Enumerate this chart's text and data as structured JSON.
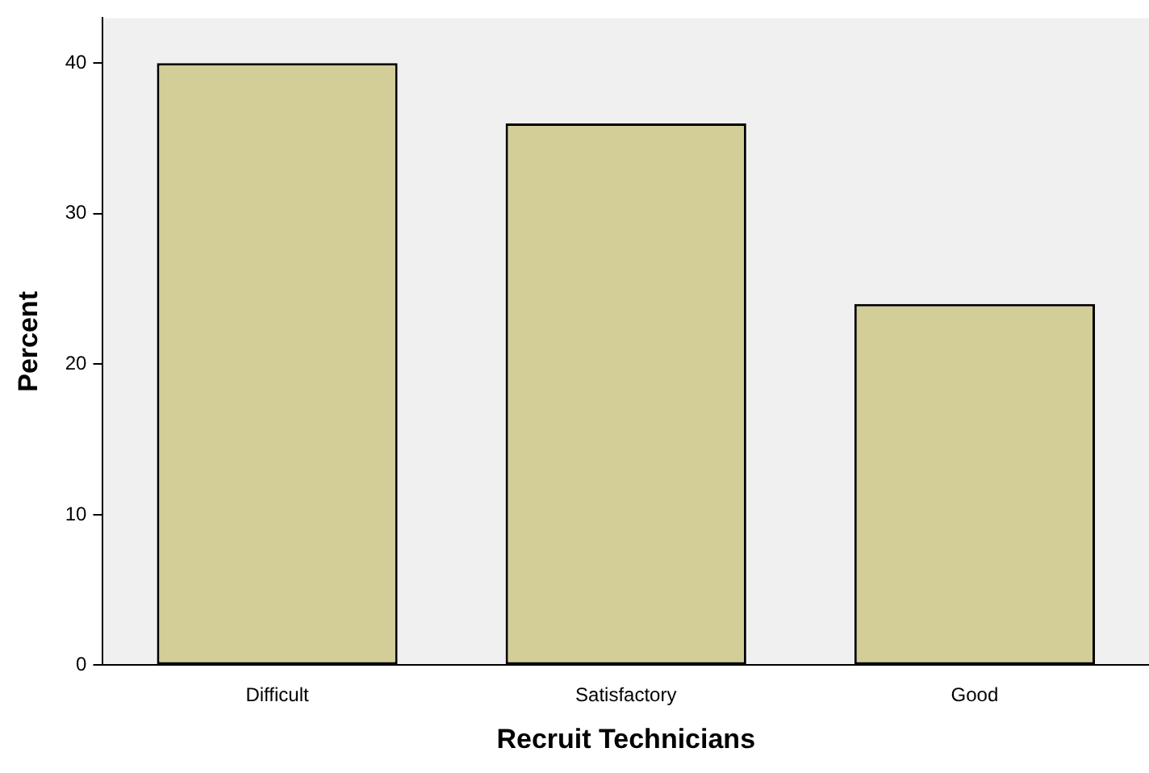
{
  "chart_data": {
    "type": "bar",
    "xlabel": "Recruit Technicians",
    "ylabel": "Percent",
    "categories": [
      "Difficult",
      "Satisfactory",
      "Good"
    ],
    "values": [
      40,
      36,
      24
    ],
    "color": "#d3ce97",
    "ylim": [
      0,
      43
    ],
    "yticks": [
      0,
      10,
      20,
      30,
      40
    ],
    "grid": false,
    "legend": false
  }
}
